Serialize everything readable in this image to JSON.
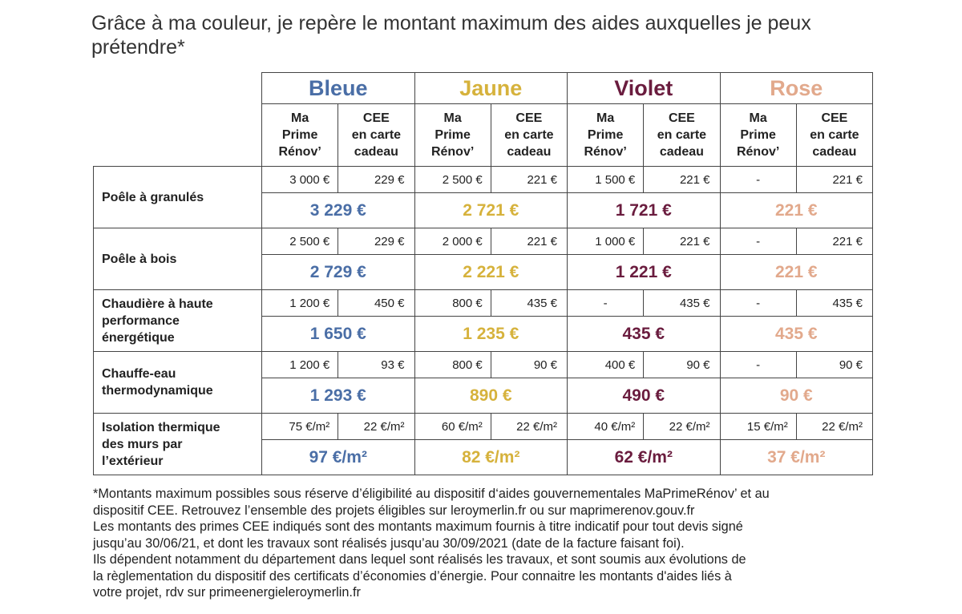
{
  "header": {
    "title": [
      "Grâce à ma couleur, je repère le montant maximum des aides auxquelles je peux",
      "prétendre*"
    ]
  },
  "table": {
    "groups": [
      {
        "name": "Bleue",
        "color": "#4a6ea6"
      },
      {
        "name": "Jaune",
        "color": "#d6b23c"
      },
      {
        "name": "Violet",
        "color": "#6a1c3e"
      },
      {
        "name": "Rose",
        "color": "#e2a98c"
      }
    ],
    "subheaders": [
      "Ma\nPrime\nRénov’",
      "CEE\nen carte\ncadeau"
    ],
    "rows": [
      {
        "label": "Poêle à granulés",
        "cells": [
          [
            "3 000 €",
            "229 €"
          ],
          [
            "2 500 €",
            "221 €"
          ],
          [
            "1 500 €",
            "221 €"
          ],
          [
            "-",
            "221 €"
          ]
        ],
        "totals": [
          "3 229 €",
          "2 721 €",
          "1 721 €",
          "221 €"
        ]
      },
      {
        "label": "Poêle à bois",
        "cells": [
          [
            "2 500 €",
            "229 €"
          ],
          [
            "2 000 €",
            "221 €"
          ],
          [
            "1 000 €",
            "221 €"
          ],
          [
            "-",
            "221 €"
          ]
        ],
        "totals": [
          "2 729 €",
          "2 221 €",
          "1 221 €",
          "221 €"
        ]
      },
      {
        "label": "Chaudière à haute\nperformance\nénergétique",
        "cells": [
          [
            "1 200 €",
            "450 €"
          ],
          [
            "800 €",
            "435 €"
          ],
          [
            "-",
            "435 €"
          ],
          [
            "-",
            "435 €"
          ]
        ],
        "totals": [
          "1 650 €",
          "1 235 €",
          "435 €",
          "435 €"
        ]
      },
      {
        "label": "Chauffe-eau\nthermodynamique",
        "cells": [
          [
            "1 200 €",
            "93 €"
          ],
          [
            "800 €",
            "90 €"
          ],
          [
            "400 €",
            "90 €"
          ],
          [
            "-",
            "90 €"
          ]
        ],
        "totals": [
          "1 293 €",
          "890 €",
          "490 €",
          "90 €"
        ]
      },
      {
        "label": "Isolation thermique\ndes murs par\nl’extérieur",
        "cells": [
          [
            "75 €/m²",
            "22 €/m²"
          ],
          [
            "60 €/m²",
            "22 €/m²"
          ],
          [
            "40 €/m²",
            "22 €/m²"
          ],
          [
            "15 €/m²",
            "22 €/m²"
          ]
        ],
        "totals": [
          "97 €/m²",
          "82 €/m²",
          "62 €/m²",
          "37 €/m²"
        ]
      }
    ]
  },
  "footnote": [
    "*Montants maximum possibles sous réserve d’éligibilité au dispositif d‘aides gouvernementales MaPrimeRénov’ et au",
    "dispositif CEE. Retrouvez l’ensemble des projets éligibles sur leroymerlin.fr ou sur maprimerenov.gouv.fr",
    "Les montants des primes CEE indiqués sont des montants maximum fournis à titre indicatif pour tout devis signé",
    "jusqu’au 30/06/21, et dont les travaux sont réalisés jusqu’au 30/09/2021 (date de la facture faisant foi).",
    "Ils dépendent notamment du département dans lequel sont réalisés les travaux, et sont soumis aux évolutions de",
    "la règlementation du dispositif des certificats d’économies d’énergie. Pour connaitre les montants d'aides liés à",
    "votre projet, rdv sur primeenergieleroymerlin.fr"
  ]
}
